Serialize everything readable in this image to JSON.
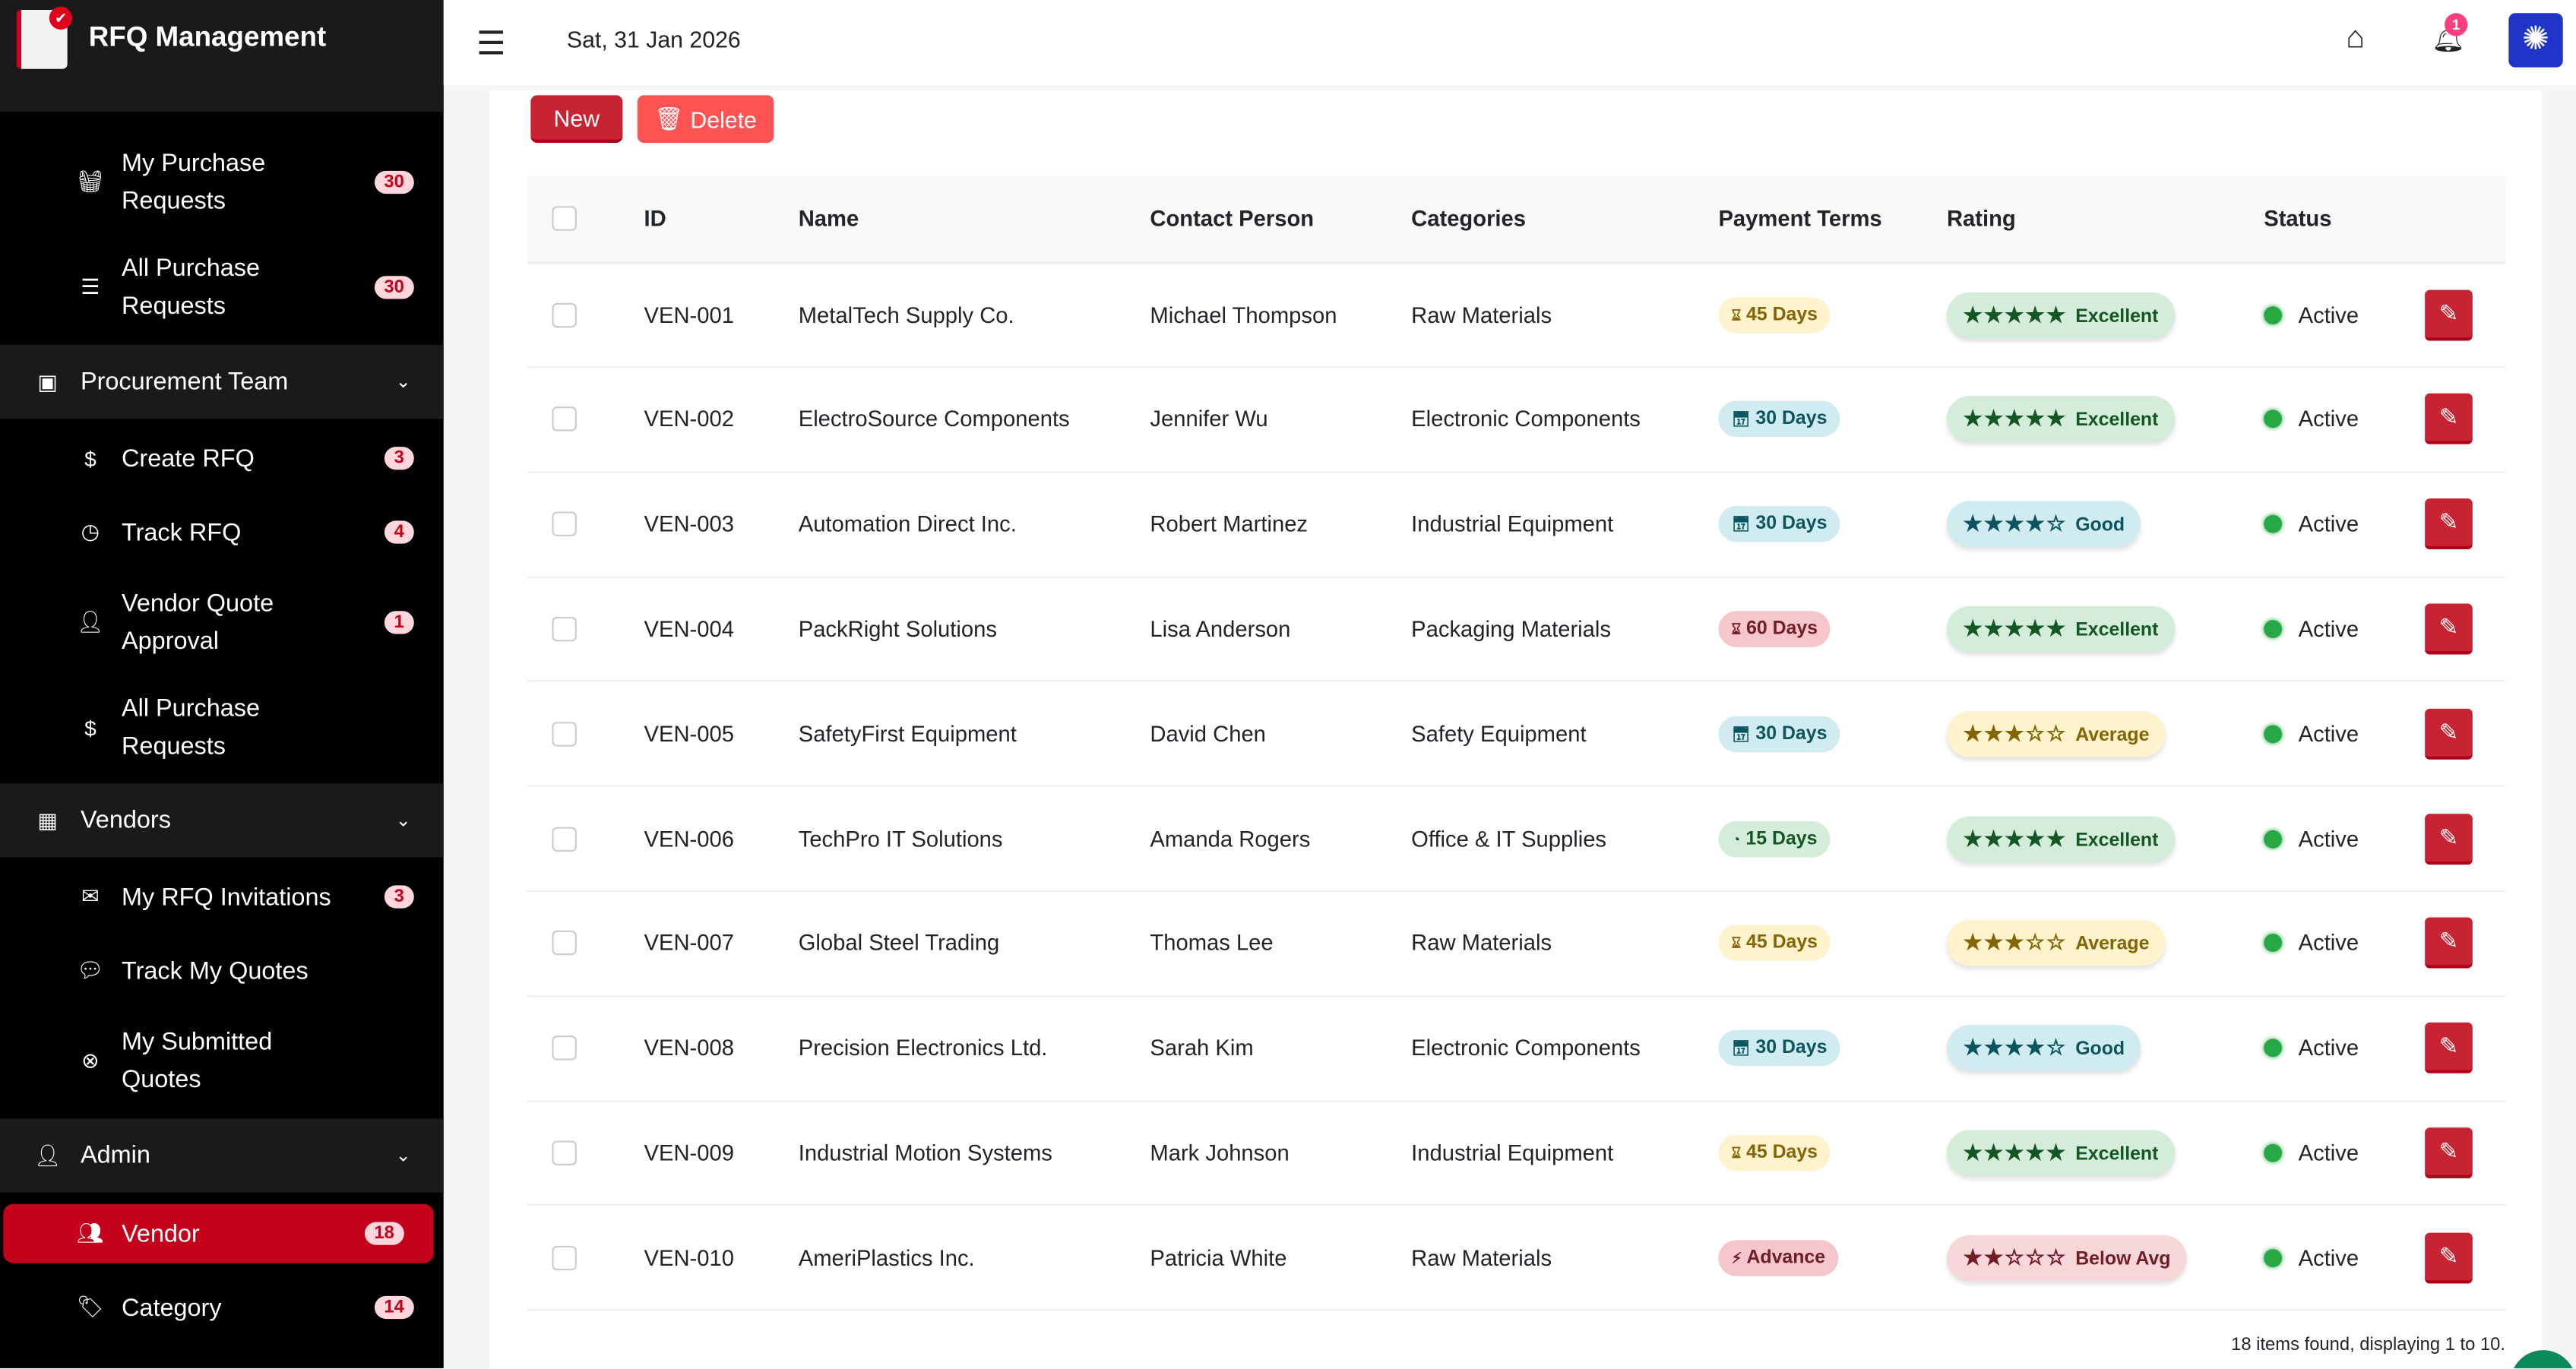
{
  "app": {
    "title": "RFQ Management",
    "date": "Sat, 31 Jan 2026",
    "notifications": "1"
  },
  "colors": {
    "accent": "#c4001a",
    "sidebar_bg": "#000000",
    "active_item": "#c4001a",
    "badge_bg": "#ffd6dc",
    "status_active": "#28a745"
  },
  "sidebar": {
    "items": [
      {
        "label": "My Purchase Requests",
        "badge": "30",
        "icon": "basket-icon"
      },
      {
        "label": "All Purchase Requests",
        "badge": "30",
        "icon": "list-icon"
      }
    ],
    "groups": [
      {
        "label": "Procurement Team",
        "icon": "id-card-icon",
        "items": [
          {
            "label": "Create RFQ",
            "badge": "3",
            "icon": "file-dollar-icon"
          },
          {
            "label": "Track RFQ",
            "badge": "4",
            "icon": "clock-icon"
          },
          {
            "label": "Vendor Quote Approval",
            "badge": "1",
            "icon": "user-check-icon"
          },
          {
            "label": "All Purchase Requests",
            "badge": "",
            "icon": "hand-dollar-icon"
          }
        ]
      },
      {
        "label": "Vendors",
        "icon": "building-user-icon",
        "items": [
          {
            "label": "My RFQ Invitations",
            "badge": "3",
            "icon": "envelope-icon"
          },
          {
            "label": "Track My Quotes",
            "badge": "",
            "icon": "comments-dollar-icon"
          },
          {
            "label": "My Submitted Quotes",
            "badge": "",
            "icon": "circle-x-icon"
          }
        ]
      },
      {
        "label": "Admin",
        "icon": "user-shield-icon",
        "items": [
          {
            "label": "Vendor",
            "badge": "18",
            "icon": "users-icon",
            "active": true
          },
          {
            "label": "Category",
            "badge": "14",
            "icon": "tags-icon"
          }
        ]
      }
    ]
  },
  "toolbar": {
    "new_label": "New",
    "delete_label": "Delete"
  },
  "table": {
    "columns": [
      "ID",
      "Name",
      "Contact Person",
      "Categories",
      "Payment Terms",
      "Rating",
      "Status"
    ],
    "rows": [
      {
        "id": "VEN-001",
        "name": "MetalTech Supply Co.",
        "contact": "Michael Thompson",
        "category": "Raw Materials",
        "payment": "45 Days",
        "payment_type": "yellow",
        "stars": 5,
        "rating": "Excellent",
        "rating_type": "green",
        "status": "Active"
      },
      {
        "id": "VEN-002",
        "name": "ElectroSource Components",
        "contact": "Jennifer Wu",
        "category": "Electronic Components",
        "payment": "30 Days",
        "payment_type": "blue",
        "stars": 5,
        "rating": "Excellent",
        "rating_type": "green",
        "status": "Active"
      },
      {
        "id": "VEN-003",
        "name": "Automation Direct Inc.",
        "contact": "Robert Martinez",
        "category": "Industrial Equipment",
        "payment": "30 Days",
        "payment_type": "blue",
        "stars": 4,
        "rating": "Good",
        "rating_type": "blue",
        "status": "Active"
      },
      {
        "id": "VEN-004",
        "name": "PackRight Solutions",
        "contact": "Lisa Anderson",
        "category": "Packaging Materials",
        "payment": "60 Days",
        "payment_type": "red",
        "stars": 5,
        "rating": "Excellent",
        "rating_type": "green",
        "status": "Active"
      },
      {
        "id": "VEN-005",
        "name": "SafetyFirst Equipment",
        "contact": "David Chen",
        "category": "Safety Equipment",
        "payment": "30 Days",
        "payment_type": "blue",
        "stars": 3,
        "rating": "Average",
        "rating_type": "yellow",
        "status": "Active"
      },
      {
        "id": "VEN-006",
        "name": "TechPro IT Solutions",
        "contact": "Amanda Rogers",
        "category": "Office & IT Supplies",
        "payment": "15 Days",
        "payment_type": "green",
        "stars": 5,
        "rating": "Excellent",
        "rating_type": "green",
        "status": "Active"
      },
      {
        "id": "VEN-007",
        "name": "Global Steel Trading",
        "contact": "Thomas Lee",
        "category": "Raw Materials",
        "payment": "45 Days",
        "payment_type": "yellow",
        "stars": 3,
        "rating": "Average",
        "rating_type": "yellow",
        "status": "Active"
      },
      {
        "id": "VEN-008",
        "name": "Precision Electronics Ltd.",
        "contact": "Sarah Kim",
        "category": "Electronic Components",
        "payment": "30 Days",
        "payment_type": "blue",
        "stars": 4,
        "rating": "Good",
        "rating_type": "blue",
        "status": "Active"
      },
      {
        "id": "VEN-009",
        "name": "Industrial Motion Systems",
        "contact": "Mark Johnson",
        "category": "Industrial Equipment",
        "payment": "45 Days",
        "payment_type": "yellow",
        "stars": 5,
        "rating": "Excellent",
        "rating_type": "green",
        "status": "Active"
      },
      {
        "id": "VEN-010",
        "name": "AmeriPlastics Inc.",
        "contact": "Patricia White",
        "category": "Raw Materials",
        "payment": "Advance",
        "payment_type": "red",
        "stars": 2,
        "rating": "Below Avg",
        "rating_type": "red",
        "status": "Active"
      }
    ],
    "footer": "18 items found, displaying 1 to 10."
  }
}
